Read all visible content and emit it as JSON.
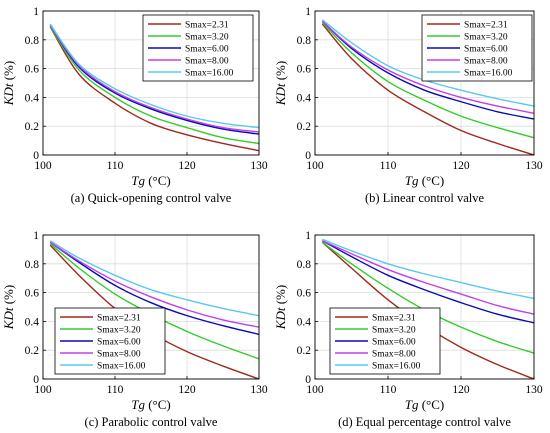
{
  "colors": {
    "Smax=2.31": "#a0281e",
    "Smax=3.20": "#33cc2a",
    "Smax=6.00": "#0a0ab4",
    "Smax=8.00": "#c040e8",
    "Smax=16.00": "#5ac8f0"
  },
  "chart_data": [
    {
      "type": "line",
      "caption": "(a) Quick-opening control valve",
      "xlabel": "Tg (°C)",
      "ylabel": "KDt (%)",
      "xlim": [
        100,
        130
      ],
      "ylim": [
        0,
        1
      ],
      "xticks": [
        "100",
        "110",
        "120",
        "130"
      ],
      "yticks": [
        "0",
        "0.2",
        "0.4",
        "0.6",
        "0.8",
        "1"
      ],
      "grid": true,
      "legend_position": "top-right",
      "x": [
        101,
        105,
        110,
        115,
        120,
        125,
        130
      ],
      "series": [
        {
          "name": "Smax=2.31",
          "values": [
            0.89,
            0.56,
            0.36,
            0.22,
            0.14,
            0.08,
            0.03
          ]
        },
        {
          "name": "Smax=3.20",
          "values": [
            0.89,
            0.59,
            0.4,
            0.27,
            0.19,
            0.12,
            0.08
          ]
        },
        {
          "name": "Smax=6.00",
          "values": [
            0.9,
            0.61,
            0.43,
            0.32,
            0.24,
            0.18,
            0.145
          ]
        },
        {
          "name": "Smax=8.00",
          "values": [
            0.9,
            0.62,
            0.44,
            0.33,
            0.25,
            0.19,
            0.16
          ]
        },
        {
          "name": "Smax=16.00",
          "values": [
            0.91,
            0.63,
            0.46,
            0.35,
            0.27,
            0.22,
            0.19
          ]
        }
      ]
    },
    {
      "type": "line",
      "caption": "(b) Linear control valve",
      "xlabel": "Tg (°C)",
      "ylabel": "KDt (%)",
      "xlim": [
        100,
        130
      ],
      "ylim": [
        0,
        1
      ],
      "xticks": [
        "100",
        "110",
        "120",
        "130"
      ],
      "yticks": [
        "0",
        "0.2",
        "0.4",
        "0.6",
        "0.8",
        "1"
      ],
      "grid": true,
      "legend_position": "top-right",
      "x": [
        101,
        105,
        110,
        115,
        120,
        125,
        130
      ],
      "series": [
        {
          "name": "Smax=2.31",
          "values": [
            0.91,
            0.67,
            0.45,
            0.3,
            0.17,
            0.08,
            0.0
          ]
        },
        {
          "name": "Smax=3.20",
          "values": [
            0.92,
            0.71,
            0.51,
            0.38,
            0.27,
            0.19,
            0.12
          ]
        },
        {
          "name": "Smax=6.00",
          "values": [
            0.93,
            0.74,
            0.57,
            0.45,
            0.37,
            0.3,
            0.25
          ]
        },
        {
          "name": "Smax=8.00",
          "values": [
            0.93,
            0.75,
            0.59,
            0.48,
            0.4,
            0.34,
            0.29
          ]
        },
        {
          "name": "Smax=16.00",
          "values": [
            0.94,
            0.78,
            0.62,
            0.52,
            0.45,
            0.39,
            0.34
          ]
        }
      ]
    },
    {
      "type": "line",
      "caption": "(c) Parabolic control valve",
      "xlabel": "Tg (°C)",
      "ylabel": "KDt (%)",
      "xlim": [
        100,
        130
      ],
      "ylim": [
        0,
        1
      ],
      "xticks": [
        "100",
        "110",
        "120",
        "130"
      ],
      "yticks": [
        "0",
        "0.2",
        "0.4",
        "0.6",
        "0.8",
        "1"
      ],
      "grid": true,
      "legend_position": "bottom-left",
      "x": [
        101,
        105,
        110,
        115,
        120,
        125,
        130
      ],
      "series": [
        {
          "name": "Smax=2.31",
          "values": [
            0.93,
            0.72,
            0.49,
            0.32,
            0.19,
            0.09,
            0.0
          ]
        },
        {
          "name": "Smax=3.20",
          "values": [
            0.94,
            0.77,
            0.59,
            0.45,
            0.33,
            0.23,
            0.14
          ]
        },
        {
          "name": "Smax=6.00",
          "values": [
            0.95,
            0.81,
            0.65,
            0.53,
            0.44,
            0.37,
            0.31
          ]
        },
        {
          "name": "Smax=8.00",
          "values": [
            0.95,
            0.82,
            0.68,
            0.57,
            0.48,
            0.41,
            0.36
          ]
        },
        {
          "name": "Smax=16.00",
          "values": [
            0.96,
            0.84,
            0.72,
            0.62,
            0.55,
            0.49,
            0.44
          ]
        }
      ]
    },
    {
      "type": "line",
      "caption": "(d) Equal percentage control valve",
      "xlabel": "Tg (°C)",
      "ylabel": "KDt (%)",
      "xlim": [
        100,
        130
      ],
      "ylim": [
        0,
        1
      ],
      "xticks": [
        "100",
        "110",
        "120",
        "130"
      ],
      "yticks": [
        "0",
        "0.2",
        "0.4",
        "0.6",
        "0.8",
        "1"
      ],
      "grid": true,
      "legend_position": "bottom-left",
      "x": [
        101,
        105,
        110,
        115,
        120,
        125,
        130
      ],
      "series": [
        {
          "name": "Smax=2.31",
          "values": [
            0.95,
            0.77,
            0.55,
            0.37,
            0.22,
            0.1,
            0.0
          ]
        },
        {
          "name": "Smax=3.20",
          "values": [
            0.95,
            0.8,
            0.63,
            0.48,
            0.36,
            0.26,
            0.18
          ]
        },
        {
          "name": "Smax=6.00",
          "values": [
            0.96,
            0.85,
            0.72,
            0.62,
            0.53,
            0.45,
            0.39
          ]
        },
        {
          "name": "Smax=8.00",
          "values": [
            0.96,
            0.87,
            0.76,
            0.67,
            0.59,
            0.51,
            0.45
          ]
        },
        {
          "name": "Smax=16.00",
          "values": [
            0.97,
            0.89,
            0.8,
            0.73,
            0.67,
            0.61,
            0.56
          ]
        }
      ]
    }
  ]
}
